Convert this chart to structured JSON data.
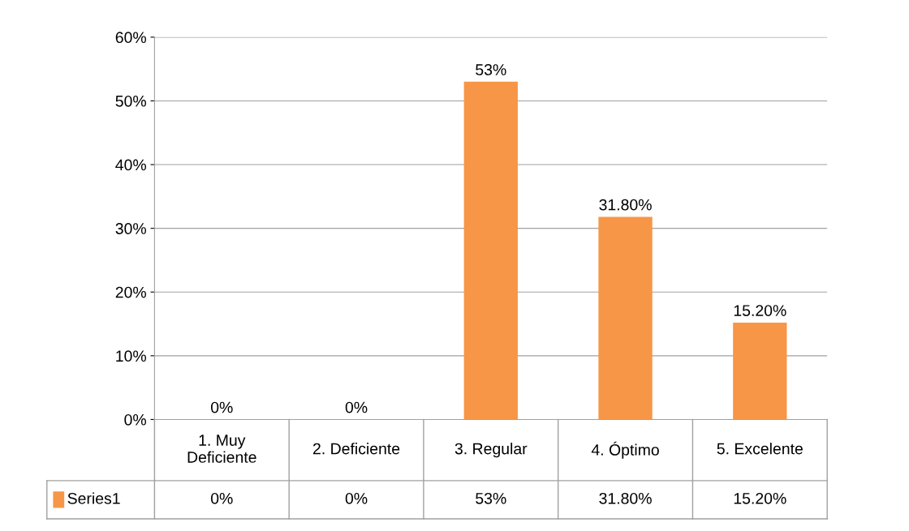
{
  "chart_data": {
    "type": "bar",
    "categories": [
      "1. Muy\nDeficiente",
      "2. Deficiente",
      "3. Regular",
      "4. Óptimo",
      "5. Excelente"
    ],
    "series": [
      {
        "name": "Series1",
        "color": "#f79646",
        "values": [
          0,
          0,
          53,
          31.8,
          15.2
        ],
        "value_labels": [
          "0%",
          "0%",
          "53%",
          "31.80%",
          "15.20%"
        ]
      }
    ],
    "ylim": [
      0,
      60
    ],
    "yticks": [
      {
        "value": 0,
        "label": "0%"
      },
      {
        "value": 10,
        "label": "10%"
      },
      {
        "value": 20,
        "label": "20%"
      },
      {
        "value": 30,
        "label": "30%"
      },
      {
        "value": 40,
        "label": "40%"
      },
      {
        "value": 50,
        "label": "50%"
      },
      {
        "value": 60,
        "label": "60%"
      }
    ],
    "grid": "y"
  }
}
